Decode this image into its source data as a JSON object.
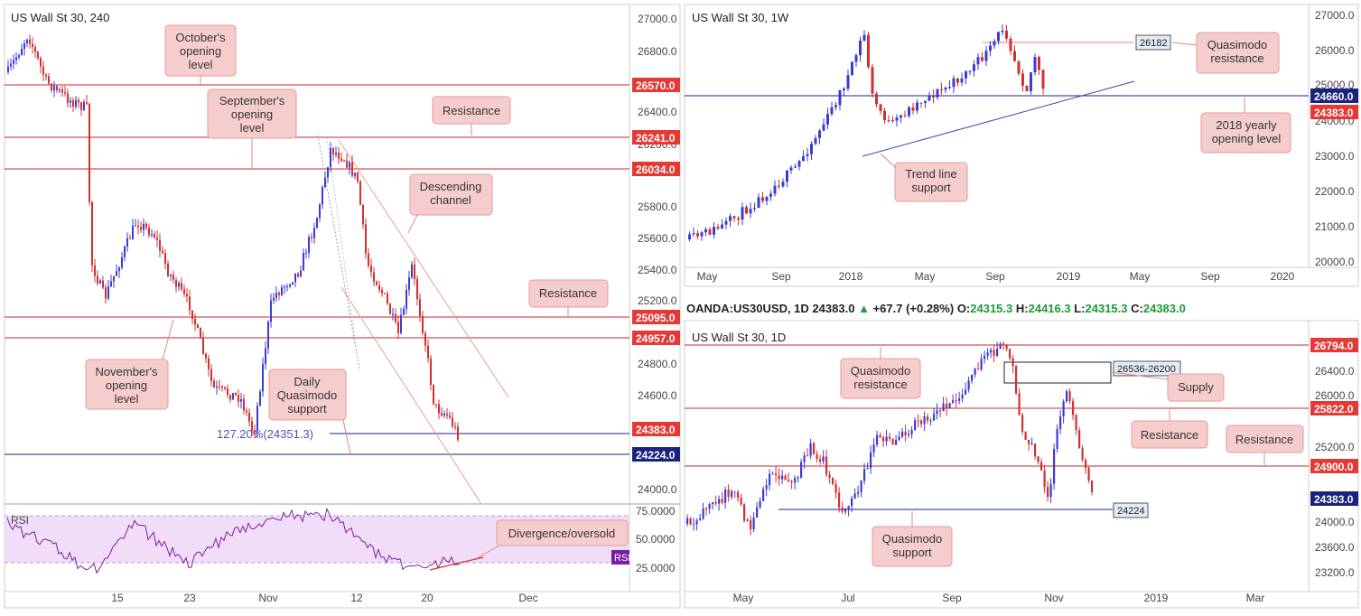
{
  "colors": {
    "up": "#3b3bd6",
    "down": "#d32f2f",
    "resline": "#c62828",
    "supline": "#1a237e",
    "callout_bg": "#f6cdcd",
    "callout_border": "#e59b9b",
    "rsi_line": "#7b1fa2",
    "rsi_band": "#f1ddf7"
  },
  "charts": {
    "h4": {
      "title": "US Wall St 30, 240",
      "y_ticks": [
        "27000.0",
        "26800.0",
        "26400.0",
        "26200.0",
        "25800.0",
        "25600.0",
        "25400.0",
        "25200.0",
        "24800.0",
        "24600.0",
        "24000.0"
      ],
      "x_ticks": [
        "15",
        "23",
        "Nov",
        "12",
        "20",
        "Dec"
      ],
      "level_tags": [
        {
          "text": "26570.0",
          "kind": "res"
        },
        {
          "text": "26241.0",
          "kind": "res"
        },
        {
          "text": "26034.0",
          "kind": "res"
        },
        {
          "text": "25095.0",
          "kind": "res"
        },
        {
          "text": "24957.0",
          "kind": "res"
        },
        {
          "text": "24383.0",
          "kind": "res"
        },
        {
          "text": "24224.0",
          "kind": "sup"
        }
      ],
      "fib_label": "127.20%(24351.3)",
      "callouts": [
        "October's opening level",
        "September's opening level",
        "Resistance",
        "Descending channel",
        "Resistance",
        "November's opening level",
        "Daily Quasimodo support"
      ],
      "rsi": {
        "label": "RSI",
        "y_ticks": [
          "75.0000",
          "50.0000",
          "25.0000"
        ],
        "tag": "RSI",
        "callout": "Divergence/oversold"
      }
    },
    "w1": {
      "title": "US Wall St 30, 1W",
      "y_ticks": [
        "27000.0",
        "26000.0",
        "25000.0",
        "24000.0",
        "23000.0",
        "22000.0",
        "21000.0",
        "20000.0"
      ],
      "x_ticks": [
        "May",
        "Sep",
        "2018",
        "May",
        "Sep",
        "2019",
        "May",
        "Sep",
        "2020"
      ],
      "level_tags": [
        {
          "text": "24660.0",
          "kind": "sup"
        },
        {
          "text": "24383.0",
          "kind": "res"
        }
      ],
      "box_label": "26182",
      "callouts": [
        "Quasimodo resistance",
        "2018 yearly opening level",
        "Trend line support"
      ]
    },
    "d1": {
      "title": "US Wall St 30, 1D",
      "y_ticks": [
        "26400.0",
        "26000.0",
        "25200.0",
        "24000.0",
        "23600.0",
        "23200.0"
      ],
      "x_ticks": [
        "May",
        "Jul",
        "Sep",
        "Nov",
        "2019",
        "Mar"
      ],
      "level_tags": [
        {
          "text": "26794.0",
          "kind": "res"
        },
        {
          "text": "25822.0",
          "kind": "res"
        },
        {
          "text": "24900.0",
          "kind": "res"
        },
        {
          "text": "24383.0",
          "kind": "sup"
        }
      ],
      "box_label": "26536-26200",
      "sup_label": "24224",
      "callouts": [
        "Quasimodo resistance",
        "Supply",
        "Resistance",
        "Resistance",
        "Quasimodo support"
      ]
    }
  },
  "ohlc": {
    "symbol": "OANDA:US30USD, 1D",
    "last": "24383.0",
    "arrow": "▲",
    "change": "+67.7 (+0.28%)",
    "o": "O:",
    "o_val": "24315.3",
    "h": "H:",
    "h_val": "24416.3",
    "l": "L:",
    "l_val": "24315.3",
    "c": "C:",
    "c_val": "24383.0"
  }
}
